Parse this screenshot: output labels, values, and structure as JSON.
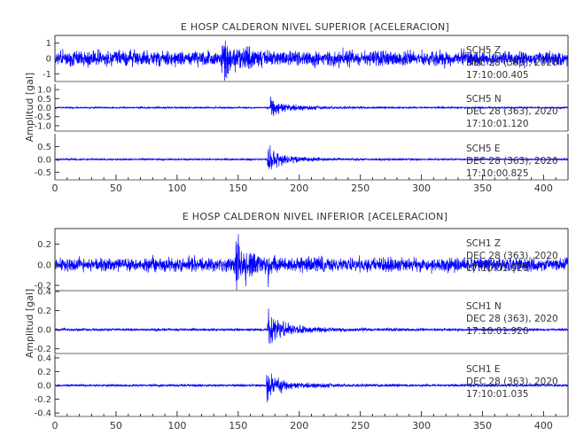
{
  "chart_data": [
    {
      "type": "line",
      "title": "E HOSP CALDERON NIVEL SUPERIOR [ACELERACION]",
      "ylabel": "Amplitud [gal]",
      "x_ticks": [
        "0",
        "50",
        "100",
        "150",
        "200",
        "250",
        "300",
        "350",
        "400"
      ],
      "xlim": [
        0,
        420
      ],
      "line_color": "#0000ff",
      "series": [
        {
          "name": "SCH5 Z",
          "date": "DEC 28 (363), 2020",
          "time": "17:10:00.405",
          "ylim": [
            -1.5,
            1.5
          ],
          "y_ticks": [
            "1",
            "0",
            "-1"
          ],
          "noise": 0.45,
          "peak": 1.3,
          "peak_x": 137,
          "event_at": 137
        },
        {
          "name": "SCH5 N",
          "date": "DEC 28 (363), 2020",
          "time": "17:10:01.120",
          "ylim": [
            -1.3,
            1.3
          ],
          "y_ticks": [
            "1.0",
            "0.5",
            "0.0",
            "-0.5",
            "-1.0"
          ],
          "noise": 0.04,
          "peak": 0.95,
          "peak_x": 178,
          "event_at": 176
        },
        {
          "name": "SCH5 E",
          "date": "DEC 28 (363), 2020",
          "time": "17:10:00.825",
          "ylim": [
            -0.8,
            1.0
          ],
          "y_ticks": [
            "0.5",
            "0.0",
            "-0.5"
          ],
          "noise": 0.03,
          "peak": 0.75,
          "peak_x": 176,
          "event_at": 174
        }
      ]
    },
    {
      "type": "line",
      "title": "E HOSP CALDERON NIVEL INFERIOR [ACELERACION]",
      "ylabel": "Amplitud [gal]",
      "x_ticks": [
        "0",
        "50",
        "100",
        "150",
        "200",
        "250",
        "300",
        "350",
        "400"
      ],
      "xlim": [
        0,
        420
      ],
      "line_color": "#0000ff",
      "series": [
        {
          "name": "SCH1 Z",
          "date": "DEC 28 (363), 2020",
          "time": "17:10:01.920",
          "ylim": [
            -0.25,
            0.35
          ],
          "y_ticks": [
            "0.2",
            "0.0",
            "-0.2"
          ],
          "noise": 0.06,
          "peak": 0.28,
          "peak_x": 175,
          "event_at": 148
        },
        {
          "name": "SCH1 N",
          "date": "DEC 28 (363), 2020",
          "time": "17:10:01.920",
          "ylim": [
            -0.25,
            0.4
          ],
          "y_ticks": [
            "0.4",
            "0.2",
            "0.0",
            "-0.2"
          ],
          "noise": 0.012,
          "peak": 0.3,
          "peak_x": 175,
          "event_at": 174
        },
        {
          "name": "SCH1 E",
          "date": "DEC 28 (363), 2020",
          "time": "17:10:01.035",
          "ylim": [
            -0.45,
            0.45
          ],
          "y_ticks": [
            "0.4",
            "0.2",
            "0.0",
            "-0.2",
            "-0.4"
          ],
          "noise": 0.015,
          "peak": 0.35,
          "peak_x": 174,
          "event_at": 173
        }
      ]
    }
  ]
}
